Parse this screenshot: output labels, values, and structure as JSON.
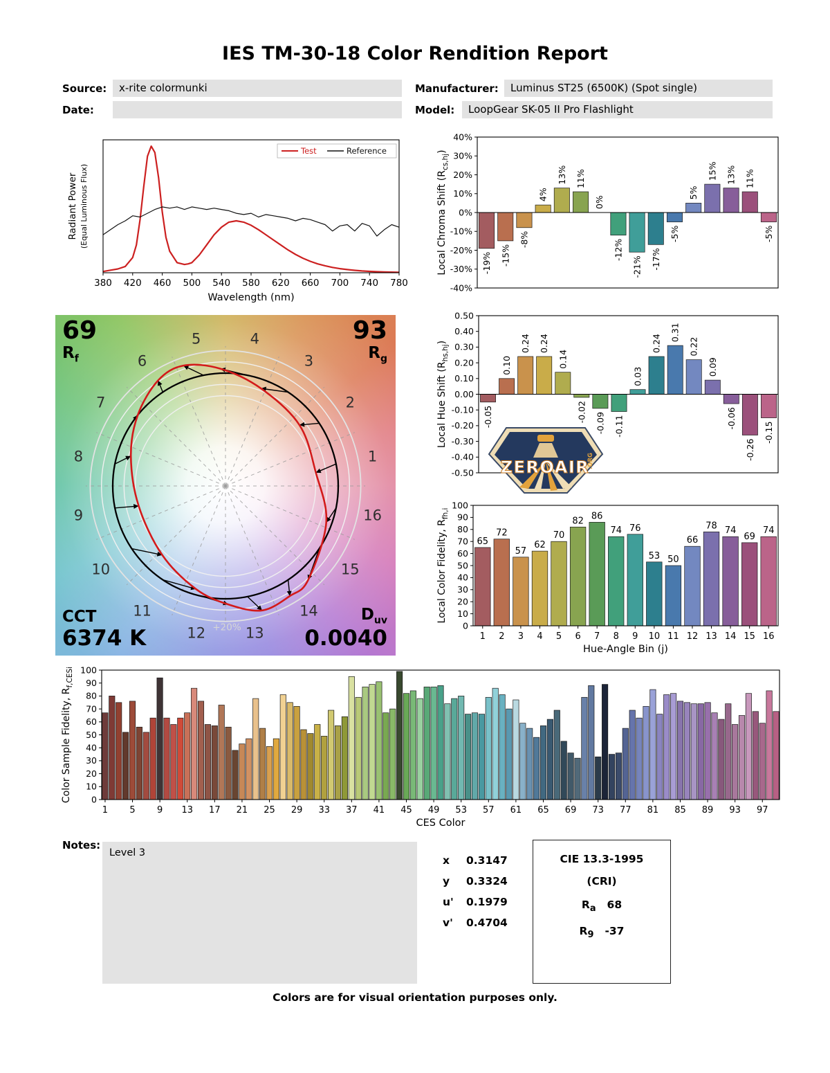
{
  "header": {
    "title": "IES TM-30-18 Color Rendition Report",
    "fields": {
      "source_label": "Source:",
      "source_value": "x-rite colormunki",
      "manufacturer_label": "Manufacturer:",
      "manufacturer_value": "Luminus ST25 (6500K) (Spot single)",
      "date_label": "Date:",
      "date_value": "",
      "model_label": "Model:",
      "model_value": "LoopGear SK-05 II Pro Flashlight"
    }
  },
  "cvg": {
    "rf_value": "69",
    "rf_label": "R",
    "rf_sub": "f",
    "rg_value": "93",
    "rg_label": "R",
    "rg_sub": "g",
    "cct_label": "CCT",
    "cct_value": "6374 K",
    "duv_label": "D",
    "duv_sub": "uv",
    "duv_value": "0.0040",
    "ring_label": "+20%",
    "bins": [
      1,
      2,
      3,
      4,
      5,
      6,
      7,
      8,
      9,
      10,
      11,
      12,
      13,
      14,
      15,
      16
    ],
    "chroma_shift_pct": [
      -19,
      -15,
      -8,
      4,
      13,
      11,
      0,
      -12,
      -21,
      -17,
      -5,
      5,
      15,
      13,
      11,
      -5
    ],
    "hue_shift": [
      -0.05,
      0.1,
      0.24,
      0.24,
      0.14,
      -0.02,
      -0.09,
      -0.11,
      0.03,
      0.24,
      0.31,
      0.22,
      0.09,
      -0.06,
      -0.26,
      -0.15
    ],
    "test_color": "#d31a1a",
    "reference_color": "#000000"
  },
  "bin_colors": [
    "#a35c60",
    "#b96f4f",
    "#c9924c",
    "#c9ac49",
    "#b0ac4e",
    "#88a450",
    "#5a9b57",
    "#41a07b",
    "#409e99",
    "#2d7f8e",
    "#4979ad",
    "#7388c0",
    "#7b70ad",
    "#875e9a",
    "#9b507b",
    "#bb6489"
  ],
  "chart_data": [
    {
      "id": "spd",
      "type": "line",
      "xlabel": "Wavelength (nm)",
      "ylabel1": "Radiant Power",
      "ylabel2": "(Equal Luminous Flux)",
      "xlim": [
        380,
        780
      ],
      "ylim": [
        0,
        1.05
      ],
      "xticks": [
        380,
        420,
        460,
        500,
        540,
        580,
        620,
        660,
        700,
        740,
        780
      ],
      "legend": [
        {
          "label": "Test",
          "color": "#cc2020",
          "tcolor": "#cc2020"
        },
        {
          "label": "Reference",
          "color": "#111111",
          "tcolor": "#111111"
        }
      ],
      "series": [
        {
          "name": "Test",
          "color": "#cc2020",
          "width": 2.2,
          "x": [
            380,
            390,
            400,
            410,
            420,
            425,
            430,
            435,
            440,
            445,
            450,
            455,
            460,
            465,
            470,
            480,
            490,
            495,
            500,
            510,
            520,
            530,
            540,
            550,
            560,
            570,
            580,
            590,
            600,
            610,
            620,
            630,
            640,
            650,
            660,
            670,
            680,
            690,
            700,
            710,
            720,
            730,
            740,
            750,
            760,
            770,
            780
          ],
          "y": [
            0.01,
            0.02,
            0.03,
            0.05,
            0.12,
            0.22,
            0.42,
            0.68,
            0.92,
            1.0,
            0.95,
            0.75,
            0.48,
            0.28,
            0.17,
            0.08,
            0.065,
            0.07,
            0.08,
            0.14,
            0.22,
            0.3,
            0.36,
            0.4,
            0.41,
            0.4,
            0.375,
            0.34,
            0.3,
            0.26,
            0.22,
            0.18,
            0.145,
            0.115,
            0.09,
            0.07,
            0.055,
            0.042,
            0.032,
            0.025,
            0.019,
            0.014,
            0.011,
            0.008,
            0.006,
            0.005,
            0.004
          ]
        },
        {
          "name": "Reference",
          "color": "#111111",
          "width": 1.2,
          "x": [
            380,
            390,
            400,
            410,
            420,
            430,
            440,
            450,
            460,
            470,
            480,
            490,
            500,
            510,
            520,
            530,
            540,
            550,
            560,
            570,
            580,
            590,
            600,
            610,
            620,
            630,
            640,
            650,
            660,
            670,
            680,
            690,
            700,
            710,
            720,
            730,
            740,
            750,
            760,
            770,
            780
          ],
          "y": [
            0.3,
            0.34,
            0.38,
            0.41,
            0.45,
            0.44,
            0.47,
            0.5,
            0.52,
            0.51,
            0.52,
            0.5,
            0.52,
            0.51,
            0.5,
            0.51,
            0.5,
            0.49,
            0.47,
            0.46,
            0.47,
            0.44,
            0.46,
            0.45,
            0.44,
            0.43,
            0.41,
            0.43,
            0.42,
            0.4,
            0.38,
            0.33,
            0.37,
            0.38,
            0.33,
            0.39,
            0.37,
            0.29,
            0.34,
            0.38,
            0.36
          ]
        }
      ]
    },
    {
      "id": "chroma_shift",
      "type": "bar",
      "categories": [
        1,
        2,
        3,
        4,
        5,
        6,
        7,
        8,
        9,
        10,
        11,
        12,
        13,
        14,
        15,
        16
      ],
      "values": [
        -19,
        -15,
        -8,
        4,
        13,
        11,
        0,
        -12,
        -21,
        -17,
        -5,
        5,
        15,
        13,
        11,
        -5
      ],
      "labels": [
        "-19%",
        "-15%",
        "-8%",
        "4%",
        "13%",
        "11%",
        "0%",
        "-12%",
        "-21%",
        "-17%",
        "-5%",
        "5%",
        "15%",
        "13%",
        "11%",
        "-5%"
      ],
      "label_style": "rotated",
      "ylim": [
        -40,
        40
      ],
      "ytick_vals": [
        40,
        30,
        20,
        10,
        0,
        -10,
        -20,
        -30,
        -40
      ],
      "ytick_labels": [
        "40%",
        "30%",
        "20%",
        "10%",
        "0%",
        "-10%",
        "-20%",
        "-30%",
        "-40%"
      ],
      "ylabel_parts": [
        [
          "Local Chroma Shift (R",
          0
        ],
        [
          "cs,hj",
          1
        ],
        [
          ")",
          0
        ]
      ],
      "show_xticks": false
    },
    {
      "id": "hue_shift",
      "type": "bar",
      "categories": [
        1,
        2,
        3,
        4,
        5,
        6,
        7,
        8,
        9,
        10,
        11,
        12,
        13,
        14,
        15,
        16
      ],
      "values": [
        -0.05,
        0.1,
        0.24,
        0.24,
        0.14,
        -0.02,
        -0.09,
        -0.11,
        0.03,
        0.24,
        0.31,
        0.22,
        0.09,
        -0.06,
        -0.26,
        -0.15
      ],
      "labels": [
        "-0.05",
        "0.10",
        "0.24",
        "0.24",
        "0.14",
        "-0.02",
        "-0.09",
        "-0.11",
        "0.03",
        "0.24",
        "0.31",
        "0.22",
        "0.09",
        "-0.06",
        "-0.26",
        "-0.15"
      ],
      "label_style": "rotated",
      "ylim": [
        -0.5,
        0.5
      ],
      "ytick_vals": [
        0.5,
        0.4,
        0.3,
        0.2,
        0.1,
        0,
        -0.1,
        -0.2,
        -0.3,
        -0.4,
        -0.5
      ],
      "ytick_labels": [
        "0.50",
        "0.40",
        "0.30",
        "0.20",
        "0.10",
        "0.00",
        "-0.10",
        "-0.20",
        "-0.30",
        "-0.40",
        "-0.50"
      ],
      "ylabel_parts": [
        [
          "Local Hue Shift (R",
          0
        ],
        [
          "hs,hj",
          1
        ],
        [
          ")",
          0
        ]
      ],
      "show_xticks": false
    },
    {
      "id": "local_fidelity",
      "type": "bar",
      "categories": [
        1,
        2,
        3,
        4,
        5,
        6,
        7,
        8,
        9,
        10,
        11,
        12,
        13,
        14,
        15,
        16
      ],
      "values": [
        65,
        72,
        57,
        62,
        70,
        82,
        86,
        74,
        76,
        53,
        50,
        66,
        78,
        74,
        69,
        74
      ],
      "labels": [
        "65",
        "72",
        "57",
        "62",
        "70",
        "82",
        "86",
        "74",
        "76",
        "53",
        "50",
        "66",
        "78",
        "74",
        "69",
        "74"
      ],
      "label_style": "horizontal",
      "ylim": [
        0,
        100
      ],
      "ytick_vals": [
        100,
        90,
        80,
        70,
        60,
        50,
        40,
        30,
        20,
        10,
        0
      ],
      "ytick_labels": [
        "100",
        "90",
        "80",
        "70",
        "60",
        "50",
        "40",
        "30",
        "20",
        "10",
        "0"
      ],
      "ylabel_parts": [
        [
          "Local Color Fidelity, R",
          0
        ],
        [
          "fh,i",
          1
        ]
      ],
      "xlabel": "Hue-Angle Bin (j)",
      "show_xticks": true
    },
    {
      "id": "ces_fidelity",
      "type": "bar",
      "categories_note": "CES 1-99",
      "values": [
        67,
        80,
        75,
        52,
        76,
        56,
        52,
        63,
        94,
        63,
        58,
        63,
        67,
        86,
        76,
        58,
        57,
        73,
        56,
        38,
        43,
        47,
        78,
        55,
        41,
        47,
        81,
        75,
        72,
        54,
        51,
        58,
        49,
        69,
        57,
        64,
        95,
        79,
        87,
        89,
        91,
        67,
        70,
        99,
        82,
        84,
        78,
        87,
        87,
        88,
        74,
        78,
        80,
        66,
        67,
        66,
        79,
        86,
        81,
        70,
        77,
        59,
        55,
        48,
        57,
        62,
        69,
        45,
        36,
        32,
        79,
        88,
        33,
        89,
        35,
        36,
        55,
        69,
        63,
        72,
        85,
        66,
        81,
        82,
        76,
        75,
        74,
        74,
        75,
        67,
        62,
        74,
        58,
        65,
        82,
        68,
        59,
        84,
        68
      ],
      "colors": [
        "#6e3b3a",
        "#7f3a35",
        "#924030",
        "#62392c",
        "#9d4b39",
        "#7e4434",
        "#a34b40",
        "#b04438",
        "#3f3335",
        "#b24a42",
        "#c05048",
        "#d04a38",
        "#c87058",
        "#d8897a",
        "#a25f4e",
        "#8f5446",
        "#794939",
        "#b17757",
        "#8a5a40",
        "#694531",
        "#c78857",
        "#d29162",
        "#e9c18c",
        "#b07f47",
        "#d9a04f",
        "#e1a93f",
        "#f1d192",
        "#d9b968",
        "#c9a13f",
        "#b99137",
        "#a1892f",
        "#c9b147",
        "#b1a13f",
        "#d1c971",
        "#a9a147",
        "#8f9937",
        "#d9e1a1",
        "#b9c977",
        "#a9c981",
        "#c1d991",
        "#99c171",
        "#79a951",
        "#89b967",
        "#39492f",
        "#69a957",
        "#79b977",
        "#99d19f",
        "#59a977",
        "#69b991",
        "#49a189",
        "#81c1b1",
        "#59a999",
        "#71b9b1",
        "#499189",
        "#61a9a9",
        "#4999a1",
        "#79c1c9",
        "#91d1d9",
        "#69b1c1",
        "#5999b1",
        "#b9d9e1",
        "#89b1c9",
        "#6991b1",
        "#517999",
        "#416981",
        "#395971",
        "#496979",
        "#314959",
        "#415969",
        "#516979",
        "#6981a9",
        "#6179a1",
        "#2b3b4b",
        "#1c2438",
        "#33435f",
        "#3b4b6b",
        "#546494",
        "#6674ac",
        "#7684bc",
        "#8894cc",
        "#9aa2d8",
        "#8a84c0",
        "#9a8cc8",
        "#a89cd4",
        "#8874ac",
        "#9884bc",
        "#a894c4",
        "#8868a4",
        "#9870ac",
        "#a880b4",
        "#88587c",
        "#98688c",
        "#a8789c",
        "#b888ac",
        "#c898bc",
        "#98587c",
        "#a8688c",
        "#c8789c",
        "#b86084"
      ],
      "ylim": [
        0,
        100
      ],
      "ytick_vals": [
        100,
        90,
        80,
        70,
        60,
        50,
        40,
        30,
        20,
        10,
        0
      ],
      "ytick_labels": [
        "100",
        "90",
        "80",
        "70",
        "60",
        "50",
        "40",
        "30",
        "20",
        "10",
        "0"
      ],
      "ylabel_parts": [
        [
          "Color Sample Fidelity, R",
          0
        ],
        [
          "f,CESi",
          1
        ]
      ],
      "xlabel": "CES Color",
      "xtick_subset": [
        1,
        5,
        9,
        13,
        17,
        21,
        25,
        29,
        33,
        37,
        41,
        45,
        49,
        53,
        57,
        61,
        65,
        69,
        73,
        77,
        81,
        85,
        89,
        93,
        97
      ],
      "bar_frac": 0.85
    }
  ],
  "logo": {
    "text": "ZEROAIR",
    "suffix": ".ORG"
  },
  "notes": {
    "label": "Notes:",
    "value": "Level 3"
  },
  "chromaticity": {
    "rows": [
      {
        "label": "x",
        "value": "0.3147"
      },
      {
        "label": "y",
        "value": "0.3324"
      },
      {
        "label": "u'",
        "value": "0.1979"
      },
      {
        "label": "v'",
        "value": "0.4704"
      }
    ]
  },
  "cri": {
    "title": "CIE 13.3-1995",
    "subtitle": "(CRI)",
    "rows": [
      {
        "label": "R",
        "sub": "a",
        "value": "68"
      },
      {
        "label": "R",
        "sub": "9",
        "value": "-37"
      }
    ]
  },
  "footer": "Colors are for visual orientation purposes only."
}
